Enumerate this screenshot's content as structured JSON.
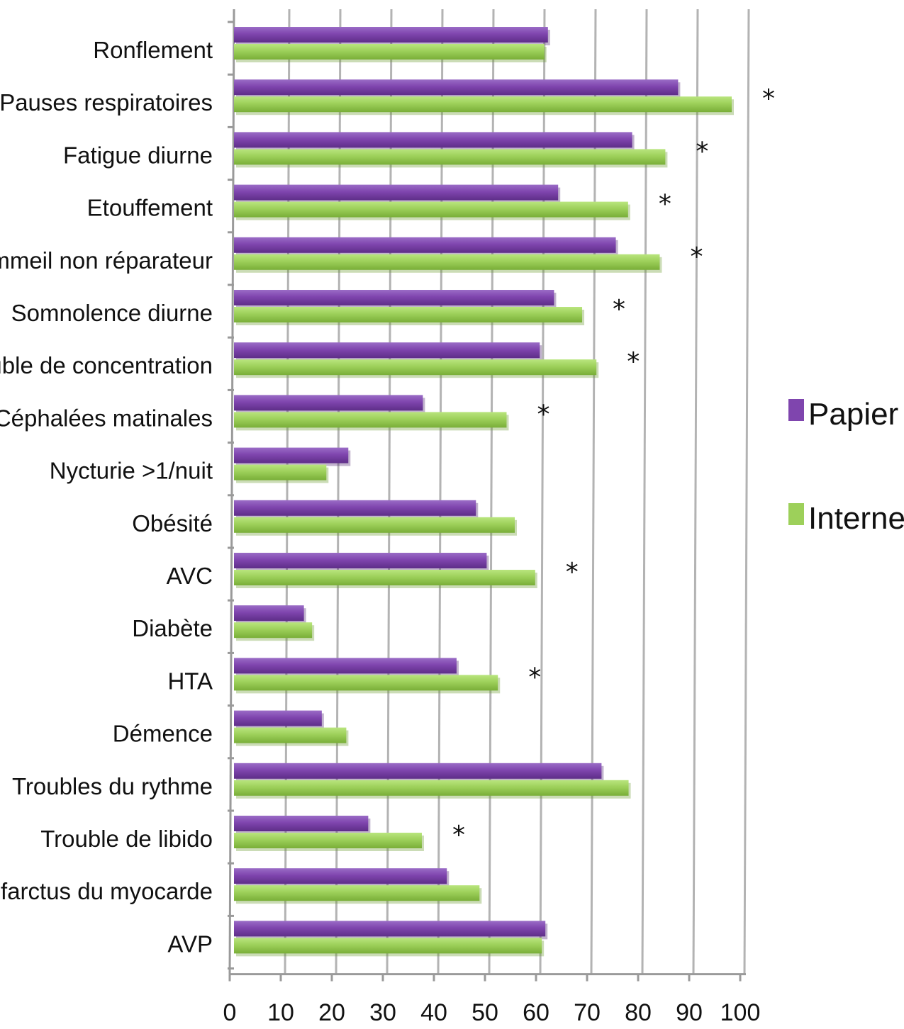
{
  "chart_data": {
    "type": "bar",
    "orientation": "horizontal",
    "categories": [
      "Ronflement",
      "Pauses respiratoires",
      "Fatigue diurne",
      "Etouffement",
      "Sommeil non réparateur",
      "Somnolence diurne",
      "Trouble de concentration",
      "Céphalées matinales",
      "Nycturie >1/nuit",
      "Obésité",
      "AVC",
      "Diabète",
      "HTA",
      "Démence",
      "Troubles du rythme",
      "Trouble de libido",
      "Infarctus du myocarde",
      "AVP"
    ],
    "series": [
      {
        "name": "Papier",
        "color": "#7F45AE",
        "values": [
          61.5,
          87,
          78,
          63.5,
          74.8,
          62.7,
          59.9,
          37,
          22.4,
          47.4,
          49.5,
          13.7,
          43.6,
          17.2,
          72,
          26.3,
          41.7,
          61
        ]
      },
      {
        "name": "Internet",
        "color": "#9DD05A",
        "values": [
          60.8,
          97.5,
          84.5,
          77.2,
          83.4,
          68.2,
          71,
          53.4,
          18.1,
          55,
          59,
          15.3,
          51.7,
          22,
          77.3,
          36.8,
          48.1,
          60.3
        ]
      }
    ],
    "significance_markers": [
      "",
      "*",
      "*",
      "*",
      "*",
      "*",
      "*",
      "*",
      "",
      "",
      "*",
      "",
      "*",
      "",
      "",
      "*",
      "",
      ""
    ],
    "xlim": [
      0,
      100
    ],
    "xticks": [
      0,
      10,
      20,
      30,
      40,
      50,
      60,
      70,
      80,
      90,
      100
    ],
    "grid": true,
    "legend_position": "right",
    "title": "",
    "xlabel": "",
    "ylabel": ""
  }
}
